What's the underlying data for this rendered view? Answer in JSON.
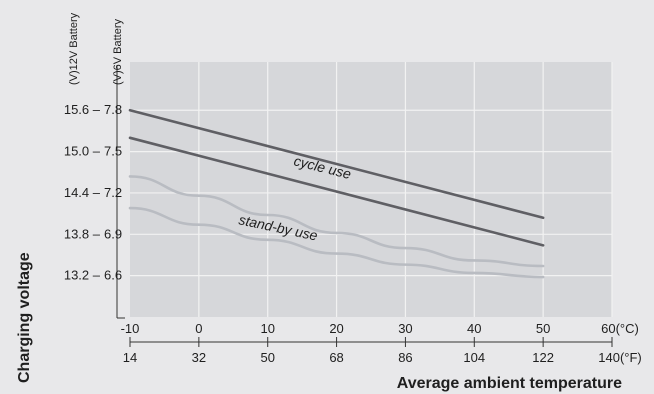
{
  "chart_data": {
    "type": "line",
    "title": "",
    "xlabel": "Average ambient temperature",
    "ylabel": "Charging voltage",
    "y_axis_12v_label": "(V)12V Battery",
    "y_axis_6v_label": "(V)6V Battery",
    "x_celsius_ticks": [
      "-10",
      "0",
      "10",
      "20",
      "30",
      "40",
      "50",
      "60(°C)"
    ],
    "x_fahrenheit_ticks": [
      "14",
      "32",
      "50",
      "68",
      "86",
      "104",
      "122",
      "140(°F)"
    ],
    "y_12v_ticks": [
      "15.6 –",
      "15.0 –",
      "14.4 –",
      "13.8 –",
      "13.2 –"
    ],
    "y_6v_ticks": [
      "7.8",
      "7.5",
      "7.2",
      "6.9",
      "6.6"
    ],
    "xlim": [
      -10,
      60
    ],
    "ylim_6v": [
      6.3,
      8.15
    ],
    "grid": true,
    "annotations": {
      "cycle": "cycle use",
      "standby": "stand-by use"
    },
    "series": [
      {
        "x": [
          -10,
          50
        ],
        "y": [
          7.8,
          7.02
        ],
        "color": "#5f5f64"
      },
      {
        "x": [
          -10,
          50
        ],
        "y": [
          7.6,
          6.82
        ],
        "color": "#5f5f64"
      },
      {
        "x": [
          -10,
          0,
          10,
          20,
          30,
          40,
          50
        ],
        "y": [
          7.32,
          7.18,
          7.04,
          6.91,
          6.8,
          6.71,
          6.67
        ],
        "color": "#b9bcc2"
      },
      {
        "x": [
          -10,
          0,
          10,
          20,
          30,
          40,
          50
        ],
        "y": [
          7.09,
          6.97,
          6.86,
          6.76,
          6.68,
          6.62,
          6.59
        ],
        "color": "#b9bcc2"
      }
    ],
    "colors": {
      "background": "#e8e8ea",
      "plot_area": "#d6d7da",
      "grid": "#f2f2f2",
      "dark_series": "#5f5f64",
      "light_series": "#b9bcc2"
    }
  }
}
